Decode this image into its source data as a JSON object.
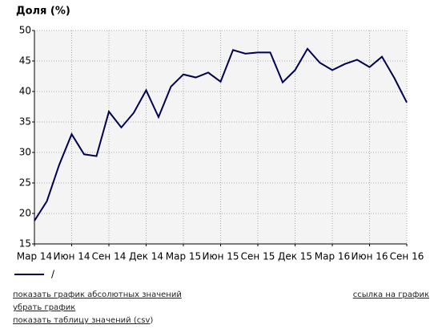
{
  "chart_data": {
    "type": "line",
    "title": "Доля (%)",
    "categories": [
      "Мар 14",
      null,
      null,
      "Июн 14",
      null,
      null,
      "Сен 14",
      null,
      null,
      "Дек 14",
      null,
      null,
      "Мар 15",
      null,
      null,
      "Июн 15",
      null,
      null,
      "Сен 15",
      null,
      null,
      "Дек 15",
      null,
      null,
      "Мар 16",
      null,
      null,
      "Июн 16",
      null,
      null,
      "Сен 16"
    ],
    "series": [
      {
        "name": "/",
        "color": "#000050",
        "values": [
          18.8,
          22,
          28,
          33,
          29.7,
          29.4,
          36.7,
          34.1,
          36.5,
          40.2,
          35.8,
          40.8,
          42.8,
          42.3,
          43.1,
          41.6,
          46.8,
          46.2,
          46.4,
          46.4,
          41.5,
          43.5,
          47,
          44.7,
          43.5,
          44.5,
          45.2,
          44,
          45.7,
          42.2,
          38.2
        ]
      }
    ],
    "ylim": [
      15,
      50
    ],
    "yticks": [
      15,
      20,
      25,
      30,
      35,
      40,
      45,
      50
    ],
    "grid": true
  },
  "links": {
    "absolute": "показать график абсолютных значений",
    "remove": "убрать график",
    "table": [
      "показать таблицу значений (",
      "csv",
      ")"
    ],
    "share": "ссылка на график"
  }
}
